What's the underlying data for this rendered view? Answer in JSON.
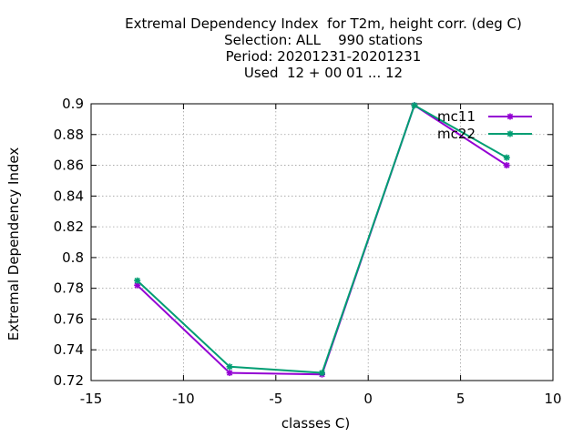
{
  "chart_data": {
    "type": "line",
    "title_lines": [
      "Extremal Dependency Index  for T2m, height corr. (deg C)",
      "Selection: ALL    990 stations",
      "Period: 20201231-20201231",
      "Used  12 + 00 01 ... 12"
    ],
    "xlabel": "classes C)",
    "ylabel": "Extremal Dependency Index",
    "xlim": [
      -15,
      10
    ],
    "ylim": [
      0.72,
      0.9
    ],
    "x_ticks": [
      "-15",
      "-10",
      "-5",
      "0",
      "5",
      "10"
    ],
    "y_ticks": [
      "0.72",
      "0.74",
      "0.76",
      "0.78",
      "0.8",
      "0.82",
      "0.84",
      "0.86",
      "0.88",
      "0.9"
    ],
    "grid": true,
    "legend_position": "top-right",
    "x": [
      -12.5,
      -7.5,
      -2.5,
      2.5,
      7.5
    ],
    "series": [
      {
        "name": "mc11",
        "color": "#9400d3",
        "values": [
          0.782,
          0.725,
          0.724,
          0.899,
          0.86
        ]
      },
      {
        "name": "mc22",
        "color": "#009e73",
        "values": [
          0.785,
          0.729,
          0.725,
          0.899,
          0.865
        ]
      }
    ]
  }
}
